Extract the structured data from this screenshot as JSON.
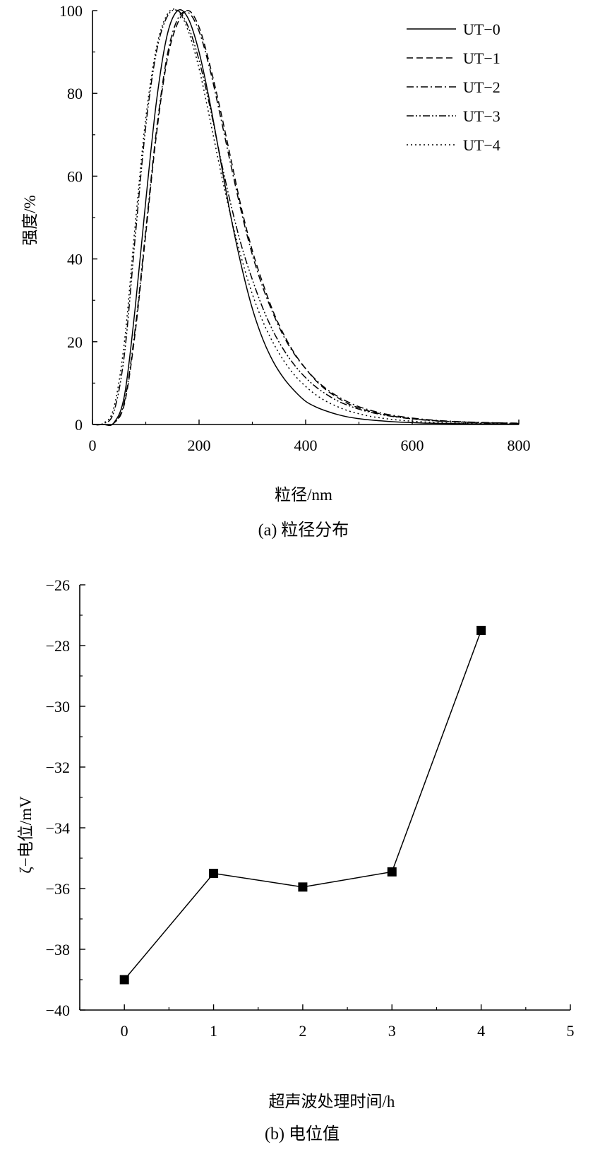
{
  "chart_data": [
    {
      "type": "line",
      "caption": "(a) 粒径分布",
      "xlabel": "粒径/nm",
      "ylabel": "强度/%",
      "xlim": [
        0,
        800
      ],
      "ylim": [
        0,
        100
      ],
      "xticks": [
        0,
        200,
        400,
        600,
        800
      ],
      "yticks": [
        0,
        20,
        40,
        60,
        80,
        100
      ],
      "legend_position": "top-right",
      "grid": false,
      "x": [
        0,
        20,
        40,
        60,
        80,
        100,
        120,
        140,
        160,
        180,
        200,
        220,
        240,
        260,
        280,
        300,
        320,
        340,
        360,
        380,
        400,
        420,
        440,
        460,
        480,
        500,
        520,
        540,
        560,
        580,
        600,
        620,
        640,
        660,
        680,
        700,
        720,
        740,
        760,
        780,
        800
      ],
      "series": [
        {
          "name": "UT−0",
          "dash": "solid",
          "values": [
            0,
            0,
            0.4,
            7,
            28,
            54,
            78,
            94,
            100,
            98,
            90,
            78,
            64,
            50,
            38,
            28,
            20.5,
            15,
            11,
            8,
            5.6,
            4.2,
            3.2,
            2.4,
            1.8,
            1.4,
            1.1,
            0.9,
            0.7,
            0.55,
            0.45,
            0.35,
            0.3,
            0.25,
            0.2,
            0.17,
            0.14,
            0.12,
            0.1,
            0.08,
            0.06
          ]
        },
        {
          "name": "UT−1",
          "dash": "dashed",
          "values": [
            0,
            0,
            0.3,
            5,
            22,
            46,
            70,
            88,
            97,
            100,
            96,
            87,
            76,
            64,
            52,
            42,
            34,
            27,
            21.5,
            17,
            13.5,
            10.5,
            8.2,
            6.5,
            5,
            4,
            3.2,
            2.6,
            2.1,
            1.7,
            1.4,
            1.15,
            0.95,
            0.8,
            0.68,
            0.58,
            0.5,
            0.43,
            0.38,
            0.34,
            0.3
          ]
        },
        {
          "name": "UT−2",
          "dash": "dashdot",
          "values": [
            0,
            0,
            0.3,
            5.5,
            23,
            47,
            71,
            89,
            98,
            99.5,
            95,
            86,
            74.5,
            62.5,
            51,
            41,
            33,
            26.5,
            21,
            16.8,
            13.5,
            10.7,
            8.5,
            6.8,
            5.4,
            4.3,
            3.5,
            2.8,
            2.3,
            1.9,
            1.55,
            1.28,
            1.05,
            0.88,
            0.74,
            0.63,
            0.54,
            0.46,
            0.4,
            0.35,
            0.31
          ]
        },
        {
          "name": "UT−3",
          "dash": "dashdotdot",
          "values": [
            0,
            0.2,
            3,
            17,
            45,
            72,
            90,
            98.5,
            100,
            96,
            88,
            77,
            64.5,
            53,
            43,
            35,
            28,
            22.3,
            17.8,
            14.2,
            11.3,
            9,
            7.2,
            5.7,
            4.6,
            3.7,
            3,
            2.45,
            2,
            1.65,
            1.35,
            1.1,
            0.9,
            0.75,
            0.62,
            0.52,
            0.44,
            0.38,
            0.33,
            0.29,
            0.26
          ]
        },
        {
          "name": "UT−4",
          "dash": "dotted",
          "values": [
            0,
            0.3,
            4,
            20,
            48,
            74,
            91,
            99,
            100,
            95,
            86,
            74,
            61.5,
            50,
            40,
            31.5,
            24.8,
            19.5,
            15.2,
            11.8,
            9.2,
            7.1,
            5.5,
            4.3,
            3.3,
            2.6,
            2,
            1.6,
            1.25,
            1,
            0.8,
            0.64,
            0.52,
            0.42,
            0.34,
            0.28,
            0.23,
            0.19,
            0.16,
            0.13,
            0.11
          ]
        }
      ]
    },
    {
      "type": "line",
      "caption": "(b) 电位值",
      "xlabel": "超声波处理时间/h",
      "ylabel": "ζ−电位/mV",
      "xlim": [
        -0.5,
        5
      ],
      "ylim": [
        -40,
        -26
      ],
      "xticks": [
        0,
        1,
        2,
        3,
        4,
        5
      ],
      "yticks": [
        -40,
        -38,
        -36,
        -34,
        -32,
        -30,
        -28,
        -26
      ],
      "ytick_labels": [
        "−40",
        "−38",
        "−36",
        "−34",
        "−32",
        "−30",
        "−28",
        "−26"
      ],
      "grid": false,
      "marker": "square",
      "x": [
        0,
        1,
        2,
        3,
        4
      ],
      "series": [
        {
          "values": [
            -39.0,
            -35.5,
            -35.95,
            -35.45,
            -27.5
          ]
        }
      ]
    }
  ]
}
